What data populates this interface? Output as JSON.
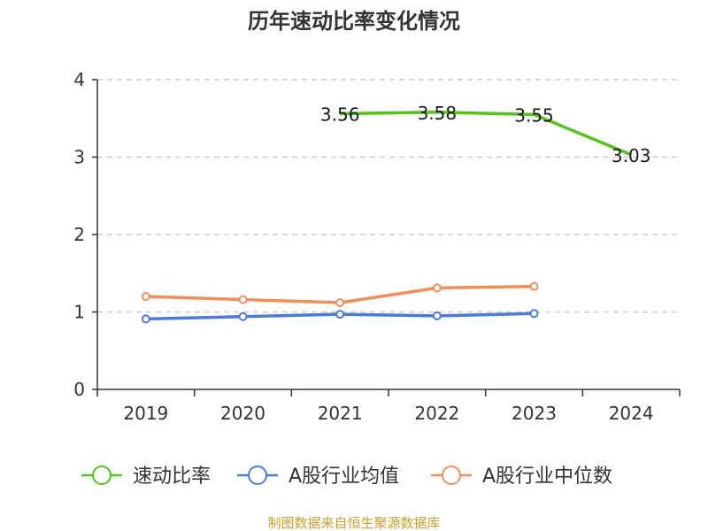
{
  "chart_data": {
    "type": "line",
    "title": "历年速动比率变化情况",
    "categories": [
      "2019",
      "2020",
      "2021",
      "2022",
      "2023",
      "2024"
    ],
    "y_ticks": [
      "0",
      "1",
      "2",
      "3",
      "4"
    ],
    "ylim": [
      0,
      4
    ],
    "grid": "horizontal-dashed",
    "legend_position": "bottom",
    "series": [
      {
        "name": "速动比率",
        "color": "#52c41a",
        "values": [
          null,
          null,
          3.56,
          3.58,
          3.55,
          3.03
        ],
        "labels": [
          null,
          null,
          "3.56",
          "3.58",
          "3.55",
          "3.03"
        ],
        "show_markers": false
      },
      {
        "name": "A股行业均值",
        "color": "#4a7bd8",
        "values": [
          0.91,
          0.94,
          0.97,
          0.95,
          0.98,
          null
        ],
        "show_markers": true
      },
      {
        "name": "A股行业中位数",
        "color": "#f28e58",
        "values": [
          1.2,
          1.16,
          1.12,
          1.31,
          1.33,
          null
        ],
        "show_markers": true
      }
    ]
  },
  "footer": {
    "source": "制图数据来自恒生聚源数据库"
  }
}
